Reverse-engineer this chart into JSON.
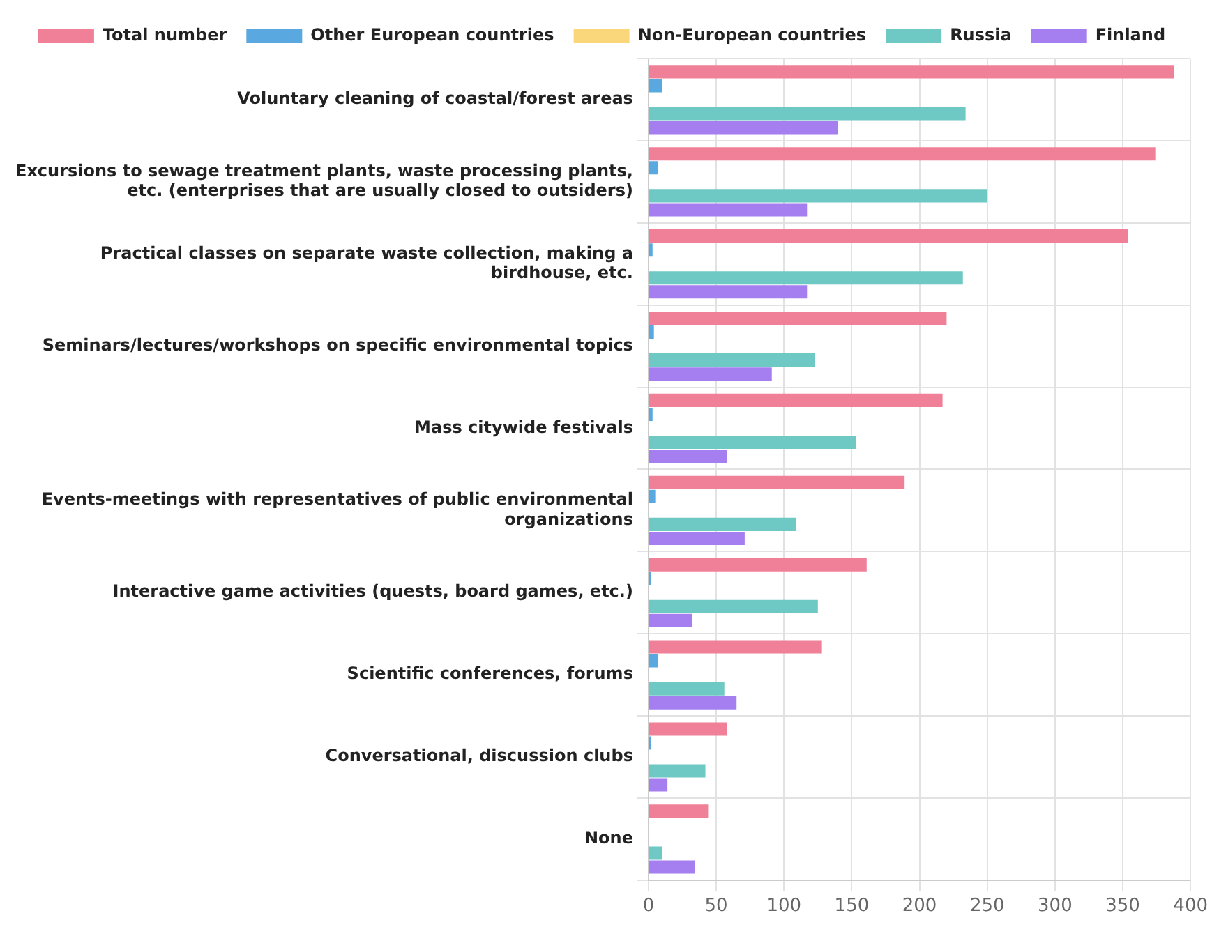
{
  "chart_data": {
    "type": "bar",
    "orientation": "horizontal",
    "categories": [
      "Voluntary cleaning of coastal/forest areas",
      "Excursions to sewage treatment plants, waste processing plants, etc. (enterprises that are usually closed to outsiders)",
      "Practical classes on separate waste collection, making a birdhouse, etc.",
      "Seminars/lectures/workshops on specific environmental topics",
      "Mass citywide festivals",
      "Events-meetings with representatives of public environmental organizations",
      "Interactive game activities (quests, board games, etc.)",
      "Scientific conferences, forums",
      "Conversational, discussion clubs",
      "None"
    ],
    "series": [
      {
        "name": "Total number",
        "color": "#f07f98",
        "values": [
          388,
          374,
          354,
          220,
          217,
          189,
          161,
          128,
          58,
          44
        ]
      },
      {
        "name": "Other European countries",
        "color": "#59a8e0",
        "values": [
          10,
          7,
          3,
          4,
          3,
          5,
          2,
          7,
          2,
          0
        ]
      },
      {
        "name": "Non-European countries",
        "color": "#fad77a",
        "values": [
          0,
          0,
          0,
          0,
          0,
          0,
          0,
          0,
          0,
          0
        ]
      },
      {
        "name": "Russia",
        "color": "#6ec8c4",
        "values": [
          234,
          250,
          232,
          123,
          153,
          109,
          125,
          56,
          42,
          10
        ]
      },
      {
        "name": "Finland",
        "color": "#a57ff0",
        "values": [
          140,
          117,
          117,
          91,
          58,
          71,
          32,
          65,
          14,
          34
        ]
      }
    ],
    "xlim": [
      0,
      400
    ],
    "xticks": [
      0,
      50,
      100,
      150,
      200,
      250,
      300,
      350,
      400
    ],
    "grid": true,
    "legend": "top"
  }
}
